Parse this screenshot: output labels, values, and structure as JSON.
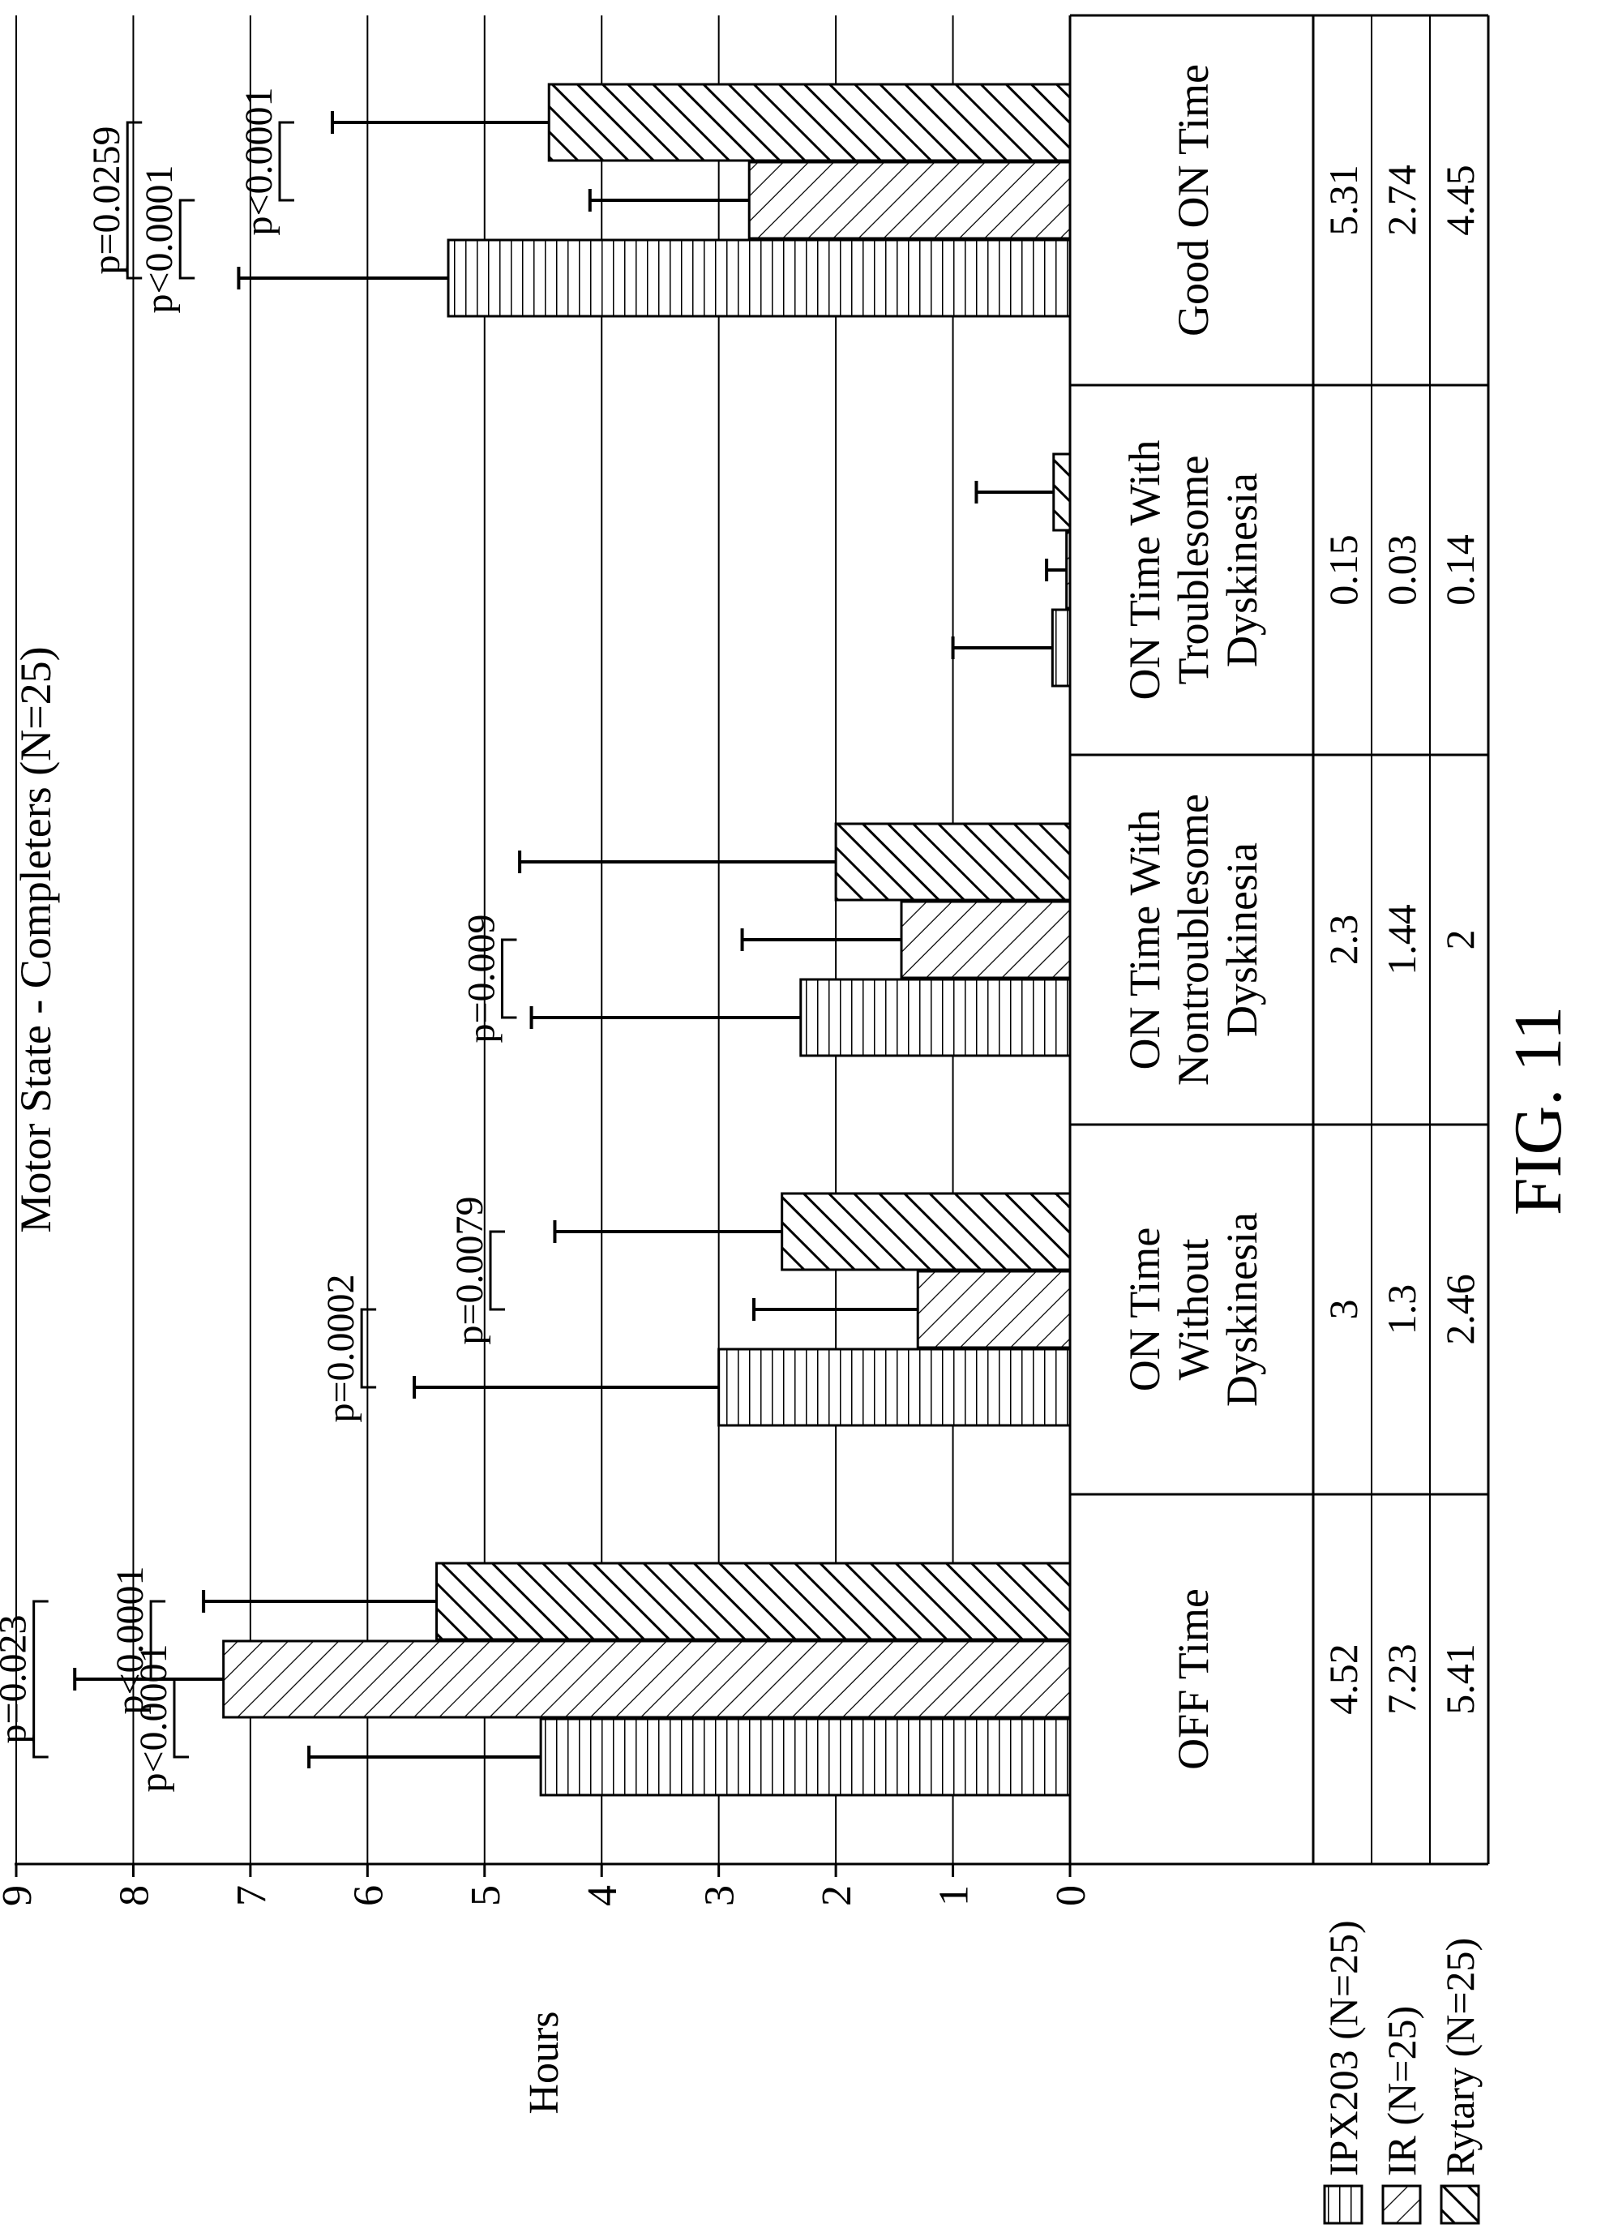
{
  "chart_data": {
    "type": "bar",
    "title": "Motor State - Completers (N=25)",
    "ylabel": "Hours",
    "ylim": [
      0,
      9
    ],
    "y_ticks": [
      "0",
      "1",
      "2",
      "3",
      "4",
      "5",
      "6",
      "7",
      "8",
      "9"
    ],
    "grid": true,
    "categories": [
      [
        "OFF Time"
      ],
      [
        "ON Time",
        "Without",
        "Dyskinesia"
      ],
      [
        "ON Time With",
        "Nontroublesome",
        "Dyskinesia"
      ],
      [
        "ON Time With",
        "Troublesome",
        "Dyskinesia"
      ],
      [
        "Good ON Time"
      ]
    ],
    "series": [
      {
        "name": "IPX203 (N=25)",
        "pattern": "horizontal-lines",
        "values": [
          4.52,
          3,
          2.3,
          0.15,
          5.31
        ],
        "labels": [
          "4.52",
          "3",
          "2.3",
          "0.15",
          "5.31"
        ],
        "error_upper": [
          6.5,
          5.6,
          4.6,
          1.0,
          7.1
        ]
      },
      {
        "name": "IR (N=25)",
        "pattern": "diagonal-forward",
        "values": [
          7.23,
          1.3,
          1.44,
          0.03,
          2.74
        ],
        "labels": [
          "7.23",
          "1.3",
          "1.44",
          "0.03",
          "2.74"
        ],
        "error_upper": [
          8.5,
          2.7,
          2.8,
          0.2,
          4.1
        ]
      },
      {
        "name": "Rytary (N=25)",
        "pattern": "diagonal-backward",
        "values": [
          5.41,
          2.46,
          2,
          0.14,
          4.45
        ],
        "labels": [
          "5.41",
          "2.46",
          "2",
          "0.14",
          "4.45"
        ],
        "error_upper": [
          7.4,
          4.4,
          4.7,
          0.8,
          6.3
        ]
      }
    ],
    "annotations": [
      {
        "text": "p<0.0001",
        "category": 0,
        "between": [
          0,
          1
        ],
        "level": 7.65
      },
      {
        "text": "p<0.0001",
        "category": 0,
        "between": [
          1,
          2
        ],
        "level": 7.85
      },
      {
        "text": "p=0.023",
        "category": 0,
        "between": [
          0,
          2
        ],
        "level": 8.85
      },
      {
        "text": "p=0.0002",
        "category": 1,
        "between": [
          0,
          1
        ],
        "level": 6.05
      },
      {
        "text": "p=0.0079",
        "category": 1,
        "between": [
          1,
          2
        ],
        "level": 4.95
      },
      {
        "text": "p=0.009",
        "category": 2,
        "between": [
          0,
          1
        ],
        "level": 4.85
      },
      {
        "text": "p<0.0001",
        "category": 4,
        "between": [
          0,
          1
        ],
        "level": 7.6
      },
      {
        "text": "p<0.0001",
        "category": 4,
        "between": [
          1,
          2
        ],
        "level": 6.75
      },
      {
        "text": "p=0.0259",
        "category": 4,
        "between": [
          0,
          2
        ],
        "level": 8.05
      }
    ]
  },
  "figure_label": "FIG. 11"
}
